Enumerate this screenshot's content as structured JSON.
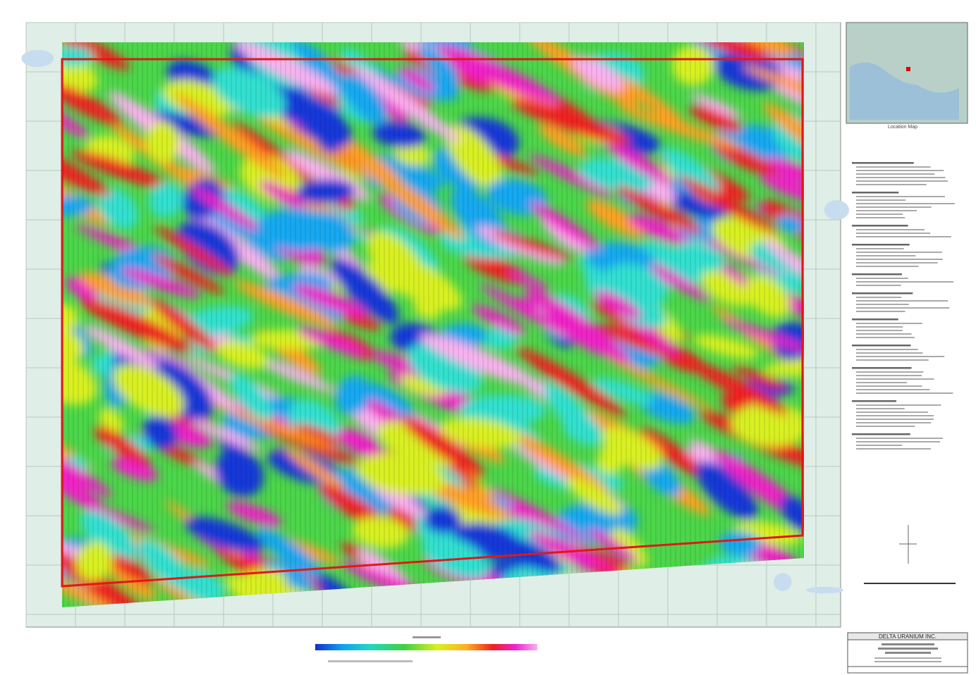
{
  "location_map": {
    "caption": "Location Map"
  },
  "title_block": {
    "company": "DELTA URANIUM INC."
  }
}
